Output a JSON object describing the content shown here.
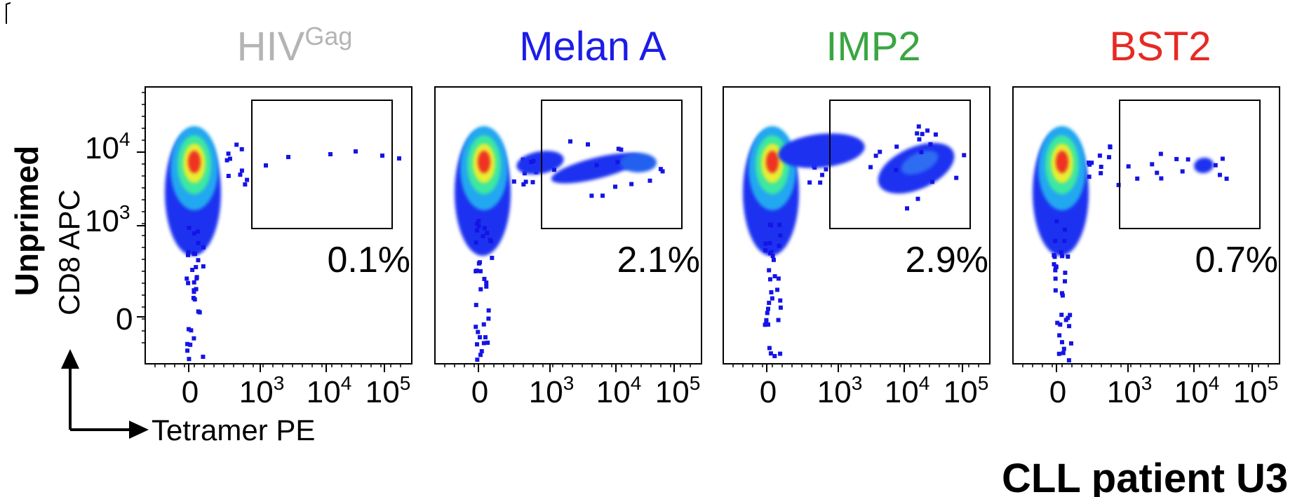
{
  "chart_data": {
    "type": "scatter",
    "subtype": "flow-cytometry-density-plot",
    "row_label": "Unprimed",
    "x_axis_label": "Tetramer PE",
    "y_axis_label": "CD8 APC",
    "x_ticks": [
      "0",
      "10",
      "10",
      "10"
    ],
    "x_tick_exponents": [
      "",
      "3",
      "4",
      "5"
    ],
    "y_ticks": [
      "10",
      "10",
      "0"
    ],
    "y_tick_exponents": [
      "4",
      "3",
      ""
    ],
    "footer": "CLL patient U3",
    "panels": [
      {
        "title": "HIV",
        "title_sup": "Gag",
        "color": "#b4b4b4",
        "gate_percent": "0.1%",
        "shape": "none"
      },
      {
        "title": "Melan A",
        "title_sup": "",
        "color": "#1c1ce8",
        "gate_percent": "2.1%",
        "shape": "bridge"
      },
      {
        "title": "IMP2",
        "title_sup": "",
        "color": "#3aa642",
        "gate_percent": "2.9%",
        "shape": "big"
      },
      {
        "title": "BST2",
        "title_sup": "",
        "color": "#e62a23",
        "gate_percent": "0.7%",
        "shape": "small"
      }
    ]
  }
}
